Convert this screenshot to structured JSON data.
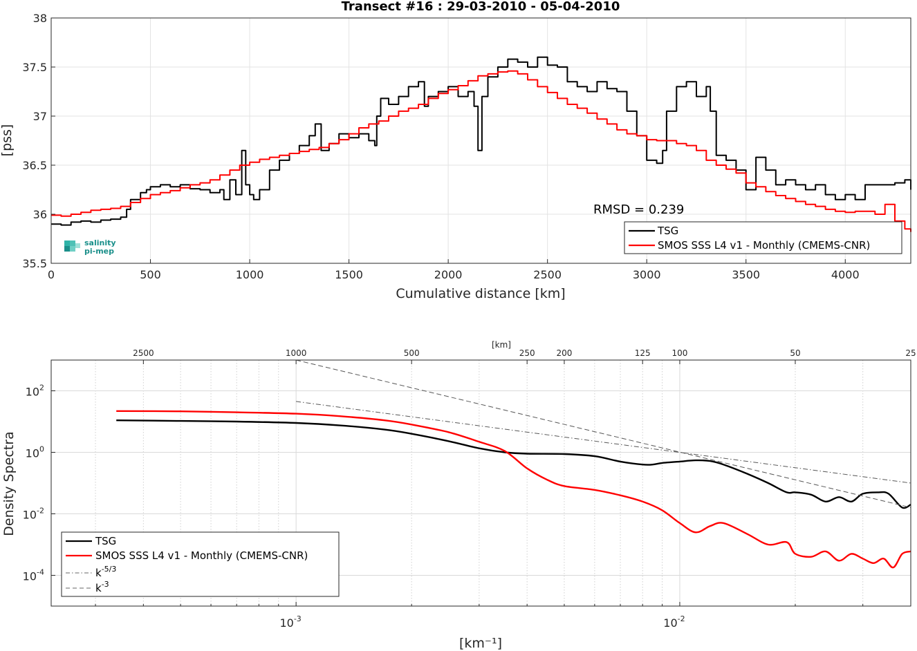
{
  "chart_data": [
    {
      "type": "line",
      "title": "Transect #16 : 29-03-2010 - 05-04-2010",
      "xlabel": "Cumulative distance [km]",
      "ylabel": "[pss]",
      "xlim": [
        0,
        4330
      ],
      "ylim": [
        35.5,
        38
      ],
      "x_ticks": [
        0,
        500,
        1000,
        1500,
        2000,
        2500,
        3000,
        3500,
        4000
      ],
      "y_ticks": [
        35.5,
        36,
        36.5,
        37,
        37.5,
        38
      ],
      "grid": true,
      "legend_position": "bottom-right",
      "annotation": "RMSD = 0.239",
      "series": [
        {
          "name": "TSG",
          "color": "#000000",
          "x": [
            0,
            50,
            100,
            150,
            200,
            250,
            300,
            350,
            380,
            400,
            450,
            480,
            500,
            550,
            600,
            650,
            700,
            750,
            800,
            850,
            870,
            900,
            930,
            960,
            980,
            1000,
            1020,
            1050,
            1100,
            1150,
            1200,
            1250,
            1300,
            1330,
            1360,
            1400,
            1450,
            1500,
            1550,
            1600,
            1630,
            1640,
            1660,
            1700,
            1750,
            1800,
            1850,
            1880,
            1900,
            1950,
            2000,
            2050,
            2100,
            2130,
            2150,
            2170,
            2200,
            2250,
            2300,
            2350,
            2400,
            2450,
            2500,
            2550,
            2600,
            2650,
            2700,
            2750,
            2800,
            2850,
            2900,
            2950,
            3000,
            3050,
            3080,
            3100,
            3150,
            3200,
            3250,
            3300,
            3320,
            3350,
            3400,
            3450,
            3500,
            3550,
            3600,
            3650,
            3700,
            3750,
            3800,
            3850,
            3900,
            3950,
            4000,
            4050,
            4100,
            4150,
            4200,
            4250,
            4300,
            4330
          ],
          "y": [
            35.9,
            35.89,
            35.92,
            35.93,
            35.92,
            35.94,
            35.95,
            35.97,
            36.05,
            36.15,
            36.22,
            36.25,
            36.28,
            36.3,
            36.28,
            36.3,
            36.26,
            36.25,
            36.22,
            36.25,
            36.15,
            36.35,
            36.2,
            36.65,
            36.3,
            36.2,
            36.15,
            36.25,
            36.45,
            36.55,
            36.62,
            36.7,
            36.8,
            36.92,
            36.65,
            36.72,
            36.82,
            36.78,
            36.82,
            36.75,
            36.7,
            37.0,
            37.18,
            37.12,
            37.2,
            37.3,
            37.35,
            37.1,
            37.2,
            37.25,
            37.3,
            37.2,
            37.25,
            37.1,
            36.65,
            37.2,
            37.4,
            37.5,
            37.58,
            37.55,
            37.5,
            37.6,
            37.52,
            37.5,
            37.35,
            37.3,
            37.25,
            37.35,
            37.28,
            37.25,
            37.05,
            36.8,
            36.55,
            36.52,
            36.65,
            37.05,
            37.3,
            37.35,
            37.2,
            37.3,
            37.05,
            36.6,
            36.55,
            36.45,
            36.25,
            36.58,
            36.45,
            36.3,
            36.35,
            36.3,
            36.25,
            36.3,
            36.2,
            36.15,
            36.2,
            36.15,
            36.3,
            36.3,
            36.3,
            36.32,
            36.35,
            36.25
          ]
        },
        {
          "name": "SMOS SSS L4 v1 - Monthly (CMEMS-CNR)",
          "color": "#ff0000",
          "x": [
            0,
            50,
            100,
            150,
            200,
            250,
            300,
            350,
            400,
            450,
            500,
            550,
            600,
            650,
            700,
            750,
            800,
            850,
            900,
            950,
            1000,
            1050,
            1100,
            1150,
            1200,
            1250,
            1300,
            1350,
            1400,
            1450,
            1500,
            1550,
            1600,
            1650,
            1700,
            1750,
            1800,
            1850,
            1900,
            1950,
            2000,
            2050,
            2100,
            2150,
            2200,
            2250,
            2300,
            2350,
            2400,
            2450,
            2500,
            2550,
            2600,
            2650,
            2700,
            2750,
            2800,
            2850,
            2900,
            2950,
            3000,
            3050,
            3100,
            3150,
            3200,
            3250,
            3300,
            3350,
            3400,
            3450,
            3500,
            3550,
            3600,
            3650,
            3700,
            3750,
            3800,
            3850,
            3900,
            3950,
            4000,
            4050,
            4100,
            4150,
            4200,
            4250,
            4300,
            4330
          ],
          "y": [
            35.99,
            35.98,
            36.0,
            36.02,
            36.04,
            36.05,
            36.06,
            36.08,
            36.12,
            36.16,
            36.2,
            36.22,
            36.24,
            36.27,
            36.3,
            36.32,
            36.35,
            36.4,
            36.45,
            36.5,
            36.53,
            36.56,
            36.58,
            36.6,
            36.62,
            36.64,
            36.66,
            36.68,
            36.72,
            36.76,
            36.82,
            36.88,
            36.92,
            36.95,
            37.0,
            37.05,
            37.08,
            37.12,
            37.18,
            37.23,
            37.27,
            37.31,
            37.36,
            37.41,
            37.43,
            37.45,
            37.46,
            37.43,
            37.37,
            37.3,
            37.24,
            37.18,
            37.12,
            37.08,
            37.03,
            36.97,
            36.92,
            36.86,
            36.82,
            36.8,
            36.76,
            36.75,
            36.75,
            36.72,
            36.7,
            36.65,
            36.55,
            36.5,
            36.46,
            36.42,
            36.32,
            36.28,
            36.23,
            36.19,
            36.16,
            36.13,
            36.1,
            36.08,
            36.05,
            36.03,
            36.02,
            36.03,
            36.03,
            36.0,
            36.1,
            35.93,
            35.85,
            35.82
          ]
        }
      ]
    },
    {
      "type": "line",
      "xlabel": "[km⁻¹]",
      "ylabel": "Density Spectra",
      "xscale": "log",
      "yscale": "log",
      "xlim": [
        0.00023,
        0.04
      ],
      "ylim": [
        1e-05,
        1000
      ],
      "x_major_ticks": [
        {
          "value": 0.001,
          "label": "10",
          "exp": "-3"
        },
        {
          "value": 0.01,
          "label": "10",
          "exp": "-2"
        }
      ],
      "y_major_ticks": [
        {
          "value": 100,
          "label": "10",
          "exp": "2"
        },
        {
          "value": 1,
          "label": "10",
          "exp": "0"
        },
        {
          "value": 0.01,
          "label": "10",
          "exp": "-2"
        },
        {
          "value": 0.0001,
          "label": "10",
          "exp": "-4"
        }
      ],
      "top_axis_label": "[km]",
      "top_ticks": [
        2500,
        1000,
        500,
        250,
        200,
        125,
        100,
        50,
        25
      ],
      "grid": true,
      "legend_position": "bottom-left",
      "series": [
        {
          "name": "TSG",
          "color": "#000000",
          "x": [
            0.00034,
            0.0005,
            0.0007,
            0.001,
            0.0013,
            0.0017,
            0.002,
            0.0025,
            0.003,
            0.0035,
            0.004,
            0.005,
            0.006,
            0.007,
            0.008,
            0.0085,
            0.009,
            0.01,
            0.011,
            0.012,
            0.013,
            0.015,
            0.017,
            0.019,
            0.02,
            0.022,
            0.024,
            0.026,
            0.028,
            0.03,
            0.033,
            0.035,
            0.038,
            0.04
          ],
          "y": [
            11,
            10.5,
            10,
            9,
            7.5,
            5.5,
            4,
            2.3,
            1.35,
            1.0,
            0.9,
            0.88,
            0.75,
            0.5,
            0.4,
            0.4,
            0.45,
            0.5,
            0.55,
            0.52,
            0.4,
            0.2,
            0.1,
            0.05,
            0.05,
            0.042,
            0.025,
            0.035,
            0.025,
            0.045,
            0.05,
            0.045,
            0.016,
            0.02
          ]
        },
        {
          "name": "SMOS SSS L4 v1 - Monthly (CMEMS-CNR)",
          "color": "#ff0000",
          "x": [
            0.00034,
            0.0005,
            0.0007,
            0.001,
            0.0013,
            0.0017,
            0.002,
            0.0025,
            0.003,
            0.0035,
            0.004,
            0.0045,
            0.005,
            0.006,
            0.007,
            0.008,
            0.009,
            0.01,
            0.011,
            0.012,
            0.013,
            0.015,
            0.017,
            0.019,
            0.02,
            0.022,
            0.024,
            0.026,
            0.028,
            0.03,
            0.032,
            0.034,
            0.036,
            0.038,
            0.04
          ],
          "y": [
            22,
            21.5,
            20,
            18,
            15,
            11,
            8,
            4.5,
            2.2,
            1.1,
            0.3,
            0.13,
            0.08,
            0.06,
            0.04,
            0.025,
            0.013,
            0.005,
            0.0025,
            0.004,
            0.005,
            0.0022,
            0.001,
            0.0012,
            0.0005,
            0.0004,
            0.0006,
            0.0003,
            0.0005,
            0.00035,
            0.00025,
            0.00035,
            0.00018,
            0.0005,
            0.0006
          ]
        },
        {
          "name": "k⁻⁵ᐟ³",
          "legend_base": "k",
          "legend_exp": "-5/3",
          "color": "#555555",
          "dash": "dashdot",
          "x": [
            0.001,
            0.04
          ],
          "y": [
            45,
            0.1
          ]
        },
        {
          "name": "k⁻³",
          "legend_base": "k",
          "legend_exp": "-3",
          "color": "#555555",
          "dash": "dash",
          "x": [
            0.001,
            0.04
          ],
          "y": [
            1000,
            0.016
          ]
        }
      ]
    }
  ],
  "logo": {
    "line1": "salinity",
    "line2": "pi-mep",
    "color": "#1a8f8a"
  }
}
